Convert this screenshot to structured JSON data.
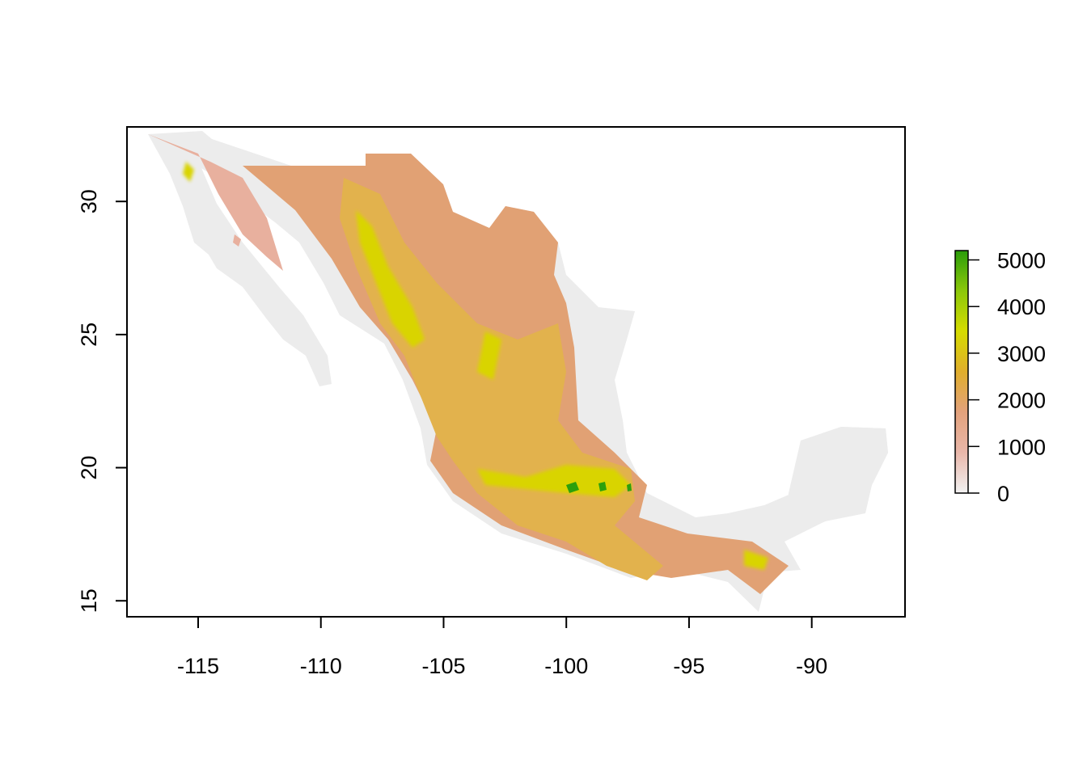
{
  "map": {
    "subject": "elevation raster of Mexico",
    "x_ticks": [
      {
        "value": -115,
        "label": "-115"
      },
      {
        "value": -110,
        "label": "-110"
      },
      {
        "value": -105,
        "label": "-105"
      },
      {
        "value": -100,
        "label": "-100"
      },
      {
        "value": -95,
        "label": "-95"
      },
      {
        "value": -90,
        "label": "-90"
      }
    ],
    "y_ticks": [
      {
        "value": 15,
        "label": "15"
      },
      {
        "value": 20,
        "label": "20"
      },
      {
        "value": 25,
        "label": "25"
      },
      {
        "value": 30,
        "label": "30"
      }
    ],
    "x_range": [
      -117.9,
      -86.2
    ],
    "y_range": [
      14.4,
      32.8
    ],
    "legend": {
      "placement": "right",
      "min": 0,
      "max": 5200,
      "ticks": [
        {
          "value": 0,
          "label": "0"
        },
        {
          "value": 1000,
          "label": "1000"
        },
        {
          "value": 2000,
          "label": "2000"
        },
        {
          "value": 3000,
          "label": "3000"
        },
        {
          "value": 4000,
          "label": "4000"
        },
        {
          "value": 5000,
          "label": "5000"
        }
      ],
      "colors": [
        "#f2f2f2",
        "#e9b7aa",
        "#e3a27c",
        "#e0ae2c",
        "#d6dc00",
        "#8cc80a",
        "#2a9c0a"
      ]
    },
    "colors": {
      "lowland": "#ececec",
      "low": "#e8b09e",
      "mid": "#e1a174",
      "high": "#e2b24d",
      "peak": "#d9d400",
      "summit": "#2ca00c"
    }
  }
}
